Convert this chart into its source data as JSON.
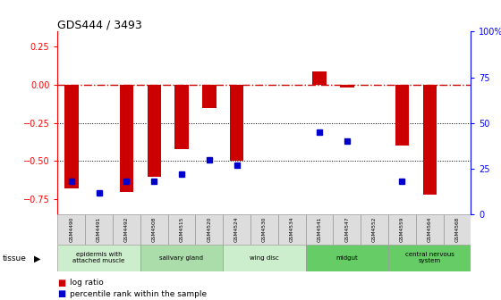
{
  "title": "GDS444 / 3493",
  "samples": [
    "GSM4490",
    "GSM4491",
    "GSM4492",
    "GSM4508",
    "GSM4515",
    "GSM4520",
    "GSM4524",
    "GSM4530",
    "GSM4534",
    "GSM4541",
    "GSM4547",
    "GSM4552",
    "GSM4559",
    "GSM4564",
    "GSM4568"
  ],
  "log_ratio": [
    -0.68,
    0.0,
    -0.7,
    -0.6,
    -0.42,
    -0.15,
    -0.5,
    0.0,
    0.0,
    0.09,
    -0.015,
    0.0,
    -0.4,
    -0.72,
    0.0
  ],
  "percentile_rank": [
    18,
    12,
    18,
    18,
    22,
    30,
    27,
    null,
    null,
    45,
    40,
    null,
    18,
    null,
    null
  ],
  "tissue_groups": [
    {
      "label": "epidermis with\nattached muscle",
      "start": 0,
      "end": 2,
      "color": "#cceecc"
    },
    {
      "label": "salivary gland",
      "start": 3,
      "end": 5,
      "color": "#aaddaa"
    },
    {
      "label": "wing disc",
      "start": 6,
      "end": 8,
      "color": "#cceecc"
    },
    {
      "label": "midgut",
      "start": 9,
      "end": 11,
      "color": "#66cc66"
    },
    {
      "label": "central nervous\nsystem",
      "start": 12,
      "end": 14,
      "color": "#66cc66"
    }
  ],
  "ylim_left": [
    -0.85,
    0.35
  ],
  "ylim_right": [
    0,
    100
  ],
  "yticks_left": [
    -0.75,
    -0.5,
    -0.25,
    0,
    0.25
  ],
  "yticks_right": [
    0,
    25,
    50,
    75,
    100
  ],
  "bar_color": "#cc0000",
  "dot_color": "#0000cc",
  "hline_color": "#cc0000",
  "dot_line_color": "#333333",
  "bar_width": 0.5
}
